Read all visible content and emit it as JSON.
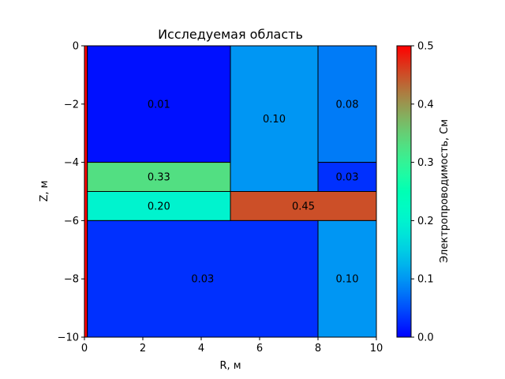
{
  "chart_data": {
    "type": "heatmap",
    "title": "Исследуемая область",
    "xlabel": "R, м",
    "ylabel": "Z, м",
    "xlim": [
      0,
      10
    ],
    "ylim": [
      -10,
      0
    ],
    "x_ticks": [
      0,
      2,
      4,
      6,
      8,
      10
    ],
    "x_tick_labels": [
      "0",
      "2",
      "4",
      "6",
      "8",
      "10"
    ],
    "y_ticks": [
      0,
      -2,
      -4,
      -6,
      -8,
      -10
    ],
    "y_tick_labels": [
      "0",
      "−2",
      "−4",
      "−6",
      "−8",
      "−10"
    ],
    "colormap": "rainbow",
    "colorbar": {
      "label": "Электропроводимость, См",
      "range": [
        0,
        0.5
      ],
      "ticks": [
        0,
        0.1,
        0.2,
        0.3,
        0.4,
        0.5
      ],
      "tick_labels": [
        "0.0",
        "0.1",
        "0.2",
        "0.3",
        "0.4",
        "0.5"
      ]
    },
    "regions": [
      {
        "r": [
          0,
          0.1
        ],
        "z": [
          -10,
          0
        ],
        "value": 0.5,
        "label": ""
      },
      {
        "r": [
          0.1,
          5
        ],
        "z": [
          -4,
          0
        ],
        "value": 0.01,
        "label": "0.01"
      },
      {
        "r": [
          5,
          8
        ],
        "z": [
          -5,
          0
        ],
        "value": 0.1,
        "label": "0.10"
      },
      {
        "r": [
          8,
          10
        ],
        "z": [
          -4,
          0
        ],
        "value": 0.08,
        "label": "0.08"
      },
      {
        "r": [
          0.1,
          5
        ],
        "z": [
          -5,
          -4
        ],
        "value": 0.33,
        "label": "0.33"
      },
      {
        "r": [
          8,
          10
        ],
        "z": [
          -5,
          -4
        ],
        "value": 0.03,
        "label": "0.03"
      },
      {
        "r": [
          0.1,
          5
        ],
        "z": [
          -6,
          -5
        ],
        "value": 0.2,
        "label": "0.20"
      },
      {
        "r": [
          5,
          10
        ],
        "z": [
          -6,
          -5
        ],
        "value": 0.45,
        "label": "0.45"
      },
      {
        "r": [
          0.1,
          8
        ],
        "z": [
          -10,
          -6
        ],
        "value": 0.03,
        "label": "0.03"
      },
      {
        "r": [
          8,
          10
        ],
        "z": [
          -10,
          -6
        ],
        "value": 0.1,
        "label": "0.10"
      }
    ]
  }
}
